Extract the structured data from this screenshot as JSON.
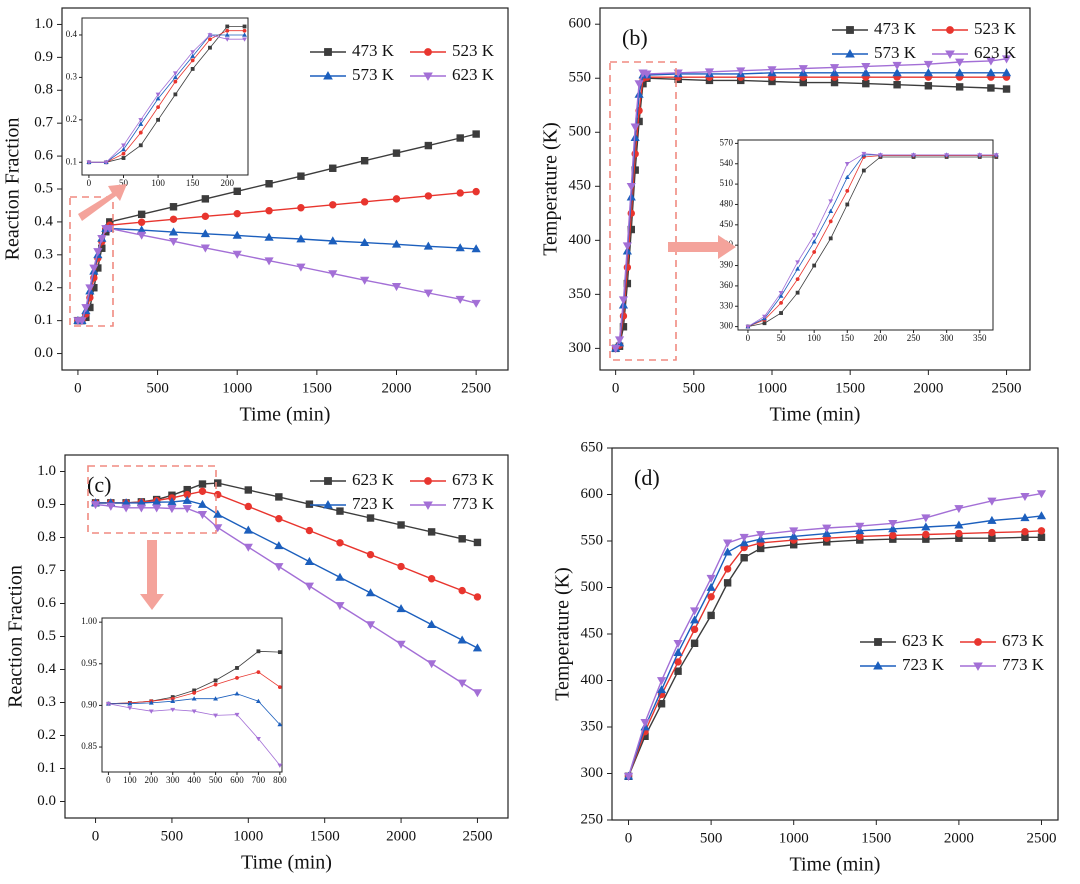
{
  "chart_data": [
    {
      "type": "line",
      "label": "(a)",
      "xlabel": "Time (min)",
      "ylabel": "Reaction Fraction",
      "legend": "upper right",
      "x": [
        0,
        25,
        50,
        75,
        100,
        125,
        150,
        175,
        200,
        400,
        600,
        800,
        1000,
        1200,
        1400,
        1600,
        1800,
        2000,
        2200,
        2400,
        2500
      ],
      "xlim": [
        -100,
        2700
      ],
      "xticks": [
        0,
        500,
        1000,
        1500,
        2000,
        2500
      ],
      "ylim": [
        -0.05,
        1.05
      ],
      "yticks": [
        {
          "value": 0,
          "label": "0.0"
        },
        0.1,
        0.2,
        0.3,
        0.4,
        0.5,
        0.6,
        0.7,
        0.8,
        0.9,
        {
          "value": 1,
          "label": "1.0"
        }
      ],
      "series": [
        {
          "name": "473 K",
          "color": "#3c3c3c",
          "marker": "square",
          "values": [
            0.1,
            0.1,
            0.11,
            0.14,
            0.2,
            0.26,
            0.32,
            0.37,
            0.4,
            0.423,
            0.446,
            0.47,
            0.493,
            0.516,
            0.539,
            0.563,
            0.586,
            0.609,
            0.632,
            0.655,
            0.667
          ]
        },
        {
          "name": "523 K",
          "color": "#e8352e",
          "marker": "circle",
          "values": [
            0.1,
            0.1,
            0.12,
            0.17,
            0.23,
            0.29,
            0.34,
            0.38,
            0.39,
            0.399,
            0.408,
            0.417,
            0.425,
            0.434,
            0.443,
            0.452,
            0.461,
            0.47,
            0.479,
            0.488,
            0.492
          ]
        },
        {
          "name": "573 K",
          "color": "#1c5fbd",
          "marker": "triangle-up",
          "values": [
            0.1,
            0.1,
            0.13,
            0.19,
            0.25,
            0.3,
            0.35,
            0.38,
            0.38,
            0.375,
            0.369,
            0.364,
            0.359,
            0.353,
            0.348,
            0.342,
            0.337,
            0.332,
            0.326,
            0.321,
            0.318
          ]
        },
        {
          "name": "623 K",
          "color": "#a36fd6",
          "marker": "triangle-down",
          "values": [
            0.1,
            0.1,
            0.14,
            0.2,
            0.26,
            0.31,
            0.35,
            0.38,
            0.38,
            0.36,
            0.341,
            0.321,
            0.302,
            0.282,
            0.263,
            0.243,
            0.223,
            0.204,
            0.184,
            0.165,
            0.153
          ]
        }
      ]
    },
    {
      "type": "line",
      "inset": true,
      "x": [
        0,
        25,
        50,
        75,
        100,
        125,
        150,
        175,
        200,
        225
      ],
      "xlim": [
        -10,
        230
      ],
      "xticks": [
        0,
        50,
        100,
        150,
        200
      ],
      "ylim": [
        0.07,
        0.44
      ],
      "yticks": [
        0.1,
        0.2,
        0.3,
        0.4
      ],
      "series": [
        {
          "color": "#3c3c3c",
          "marker": "square",
          "values": [
            0.1,
            0.1,
            0.11,
            0.14,
            0.2,
            0.26,
            0.32,
            0.37,
            0.42,
            0.42
          ]
        },
        {
          "color": "#e8352e",
          "marker": "circle",
          "values": [
            0.1,
            0.1,
            0.12,
            0.17,
            0.23,
            0.29,
            0.34,
            0.39,
            0.41,
            0.41
          ]
        },
        {
          "color": "#1c5fbd",
          "marker": "triangle-up",
          "values": [
            0.1,
            0.1,
            0.13,
            0.19,
            0.25,
            0.3,
            0.35,
            0.4,
            0.4,
            0.4
          ]
        },
        {
          "color": "#a36fd6",
          "marker": "triangle-down",
          "values": [
            0.1,
            0.1,
            0.14,
            0.2,
            0.26,
            0.31,
            0.36,
            0.4,
            0.39,
            0.39
          ]
        }
      ]
    },
    {
      "type": "line",
      "label": "(b)",
      "xlabel": "Time (min)",
      "ylabel": "Temperature (K)",
      "legend": "upper right",
      "x": [
        0,
        25,
        50,
        75,
        100,
        125,
        150,
        175,
        200,
        400,
        600,
        800,
        1000,
        1200,
        1400,
        1600,
        1800,
        2000,
        2200,
        2400,
        2500
      ],
      "xlim": [
        -100,
        2650
      ],
      "xticks": [
        0,
        500,
        1000,
        1500,
        2000,
        2500
      ],
      "ylim": [
        280,
        615
      ],
      "yticks": [
        300,
        350,
        400,
        450,
        500,
        550,
        600
      ],
      "series": [
        {
          "name": "473 K",
          "color": "#3c3c3c",
          "marker": "square",
          "values": [
            300,
            302,
            320,
            360,
            410,
            465,
            510,
            545,
            550,
            549,
            548,
            548,
            547,
            546,
            546,
            545,
            544,
            543,
            542,
            541,
            540
          ]
        },
        {
          "name": "523 K",
          "color": "#e8352e",
          "marker": "circle",
          "values": [
            300,
            303,
            330,
            375,
            425,
            480,
            520,
            550,
            551,
            551,
            551,
            551,
            551,
            551,
            551,
            551,
            551,
            551,
            551,
            551,
            551
          ]
        },
        {
          "name": "573 K",
          "color": "#1c5fbd",
          "marker": "triangle-up",
          "values": [
            300,
            305,
            340,
            390,
            440,
            495,
            535,
            553,
            553,
            554,
            554,
            554,
            555,
            555,
            555,
            555,
            555,
            555,
            555,
            555,
            555
          ]
        },
        {
          "name": "623 K",
          "color": "#a36fd6",
          "marker": "triangle-down",
          "values": [
            300,
            308,
            345,
            395,
            450,
            505,
            545,
            555,
            554,
            555,
            556,
            557,
            558,
            559,
            560,
            561,
            562,
            563,
            565,
            566,
            568
          ]
        }
      ]
    },
    {
      "type": "line",
      "inset": true,
      "x": [
        0,
        25,
        50,
        75,
        100,
        125,
        150,
        175,
        200,
        250,
        300,
        350,
        375
      ],
      "xlim": [
        -15,
        370
      ],
      "xticks": [
        0,
        50,
        100,
        150,
        200,
        250,
        300,
        350
      ],
      "ylim": [
        295,
        575
      ],
      "yticks": [
        300,
        330,
        360,
        390,
        420,
        450,
        480,
        510,
        540,
        570
      ],
      "series": [
        {
          "color": "#3c3c3c",
          "marker": "square",
          "values": [
            300,
            305,
            320,
            350,
            390,
            430,
            480,
            530,
            550,
            550,
            550,
            550,
            550
          ]
        },
        {
          "color": "#e8352e",
          "marker": "circle",
          "values": [
            300,
            310,
            335,
            370,
            410,
            455,
            500,
            550,
            552,
            552,
            552,
            552,
            552
          ]
        },
        {
          "color": "#1c5fbd",
          "marker": "triangle-up",
          "values": [
            300,
            312,
            345,
            385,
            425,
            470,
            520,
            553,
            553,
            553,
            553,
            553,
            553
          ]
        },
        {
          "color": "#a36fd6",
          "marker": "triangle-down",
          "values": [
            300,
            315,
            350,
            395,
            435,
            485,
            540,
            555,
            553,
            553,
            553,
            553,
            553
          ]
        }
      ]
    },
    {
      "type": "line",
      "label": "(c)",
      "xlabel": "Time (min)",
      "ylabel": "Reaction Fraction",
      "legend": "upper right",
      "x": [
        0,
        100,
        200,
        300,
        400,
        500,
        600,
        700,
        800,
        1000,
        1200,
        1400,
        1600,
        1800,
        2000,
        2200,
        2400,
        2500
      ],
      "xlim": [
        -200,
        2700
      ],
      "xticks": [
        0,
        500,
        1000,
        1500,
        2000,
        2500
      ],
      "ylim": [
        -0.05,
        1.05
      ],
      "yticks": [
        {
          "value": 0,
          "label": "0.0"
        },
        0.1,
        0.2,
        0.3,
        0.4,
        0.5,
        0.6,
        0.7,
        0.8,
        0.9,
        {
          "value": 1,
          "label": "1.0"
        }
      ],
      "series": [
        {
          "name": "623 K",
          "color": "#3c3c3c",
          "marker": "square",
          "values": [
            0.905,
            0.905,
            0.905,
            0.908,
            0.915,
            0.928,
            0.945,
            0.962,
            0.965,
            0.944,
            0.923,
            0.901,
            0.88,
            0.859,
            0.838,
            0.817,
            0.796,
            0.785
          ]
        },
        {
          "name": "673 K",
          "color": "#e8352e",
          "marker": "circle",
          "values": [
            0.905,
            0.905,
            0.905,
            0.907,
            0.912,
            0.92,
            0.93,
            0.94,
            0.93,
            0.894,
            0.857,
            0.821,
            0.784,
            0.748,
            0.712,
            0.675,
            0.639,
            0.62
          ]
        },
        {
          "name": "723 K",
          "color": "#1c5fbd",
          "marker": "triangle-up",
          "values": [
            0.905,
            0.905,
            0.905,
            0.905,
            0.907,
            0.908,
            0.912,
            0.9,
            0.87,
            0.822,
            0.775,
            0.727,
            0.679,
            0.632,
            0.584,
            0.536,
            0.489,
            0.465
          ]
        },
        {
          "name": "773 K",
          "color": "#a36fd6",
          "marker": "triangle-down",
          "values": [
            0.9,
            0.895,
            0.89,
            0.89,
            0.89,
            0.888,
            0.888,
            0.87,
            0.83,
            0.771,
            0.712,
            0.653,
            0.594,
            0.536,
            0.477,
            0.418,
            0.359,
            0.33
          ]
        }
      ]
    },
    {
      "type": "line",
      "inset": true,
      "x": [
        0,
        100,
        200,
        300,
        400,
        500,
        600,
        700,
        800
      ],
      "xlim": [
        -30,
        810
      ],
      "xticks": [
        0,
        100,
        200,
        300,
        400,
        500,
        600,
        700,
        800
      ],
      "ylim": [
        0.82,
        1.005
      ],
      "yticks": [
        0.85,
        {
          "value": 0.9,
          "label": "0.90"
        },
        0.95,
        {
          "value": 1,
          "label": "1.00"
        }
      ],
      "series": [
        {
          "color": "#3c3c3c",
          "marker": "square",
          "values": [
            0.902,
            0.903,
            0.905,
            0.91,
            0.918,
            0.93,
            0.945,
            0.965,
            0.964
          ]
        },
        {
          "color": "#e8352e",
          "marker": "circle",
          "values": [
            0.902,
            0.903,
            0.905,
            0.908,
            0.915,
            0.925,
            0.933,
            0.94,
            0.922
          ]
        },
        {
          "color": "#1c5fbd",
          "marker": "triangle-up",
          "values": [
            0.902,
            0.902,
            0.903,
            0.905,
            0.908,
            0.908,
            0.914,
            0.905,
            0.877
          ]
        },
        {
          "color": "#a36fd6",
          "marker": "triangle-down",
          "values": [
            0.902,
            0.897,
            0.893,
            0.895,
            0.893,
            0.888,
            0.889,
            0.86,
            0.828
          ]
        }
      ]
    },
    {
      "type": "line",
      "label": "(d)",
      "xlabel": "Time (min)",
      "ylabel": "Temperature (K)",
      "legend": "center right",
      "x": [
        0,
        100,
        200,
        300,
        400,
        500,
        600,
        700,
        800,
        1000,
        1200,
        1400,
        1600,
        1800,
        2000,
        2200,
        2400,
        2500
      ],
      "xlim": [
        -100,
        2600
      ],
      "xticks": [
        0,
        500,
        1000,
        1500,
        2000,
        2500
      ],
      "ylim": [
        250,
        650
      ],
      "yticks": [
        250,
        300,
        350,
        400,
        450,
        500,
        550,
        600,
        650
      ],
      "series": [
        {
          "name": "623 K",
          "color": "#3c3c3c",
          "marker": "square",
          "values": [
            297,
            340,
            375,
            410,
            440,
            470,
            505,
            532,
            542,
            546,
            549,
            551,
            552,
            552,
            553,
            553,
            554,
            554
          ]
        },
        {
          "name": "673 K",
          "color": "#e8352e",
          "marker": "circle",
          "values": [
            297,
            345,
            385,
            420,
            455,
            490,
            520,
            543,
            548,
            551,
            553,
            555,
            556,
            557,
            558,
            559,
            560,
            561
          ]
        },
        {
          "name": "723 K",
          "color": "#1c5fbd",
          "marker": "triangle-up",
          "values": [
            297,
            350,
            390,
            430,
            465,
            500,
            538,
            548,
            552,
            555,
            558,
            561,
            563,
            565,
            567,
            572,
            575,
            577
          ]
        },
        {
          "name": "773 K",
          "color": "#a36fd6",
          "marker": "triangle-down",
          "values": [
            297,
            355,
            400,
            440,
            475,
            510,
            548,
            554,
            557,
            561,
            564,
            566,
            569,
            575,
            585,
            593,
            598,
            601
          ]
        }
      ]
    }
  ]
}
